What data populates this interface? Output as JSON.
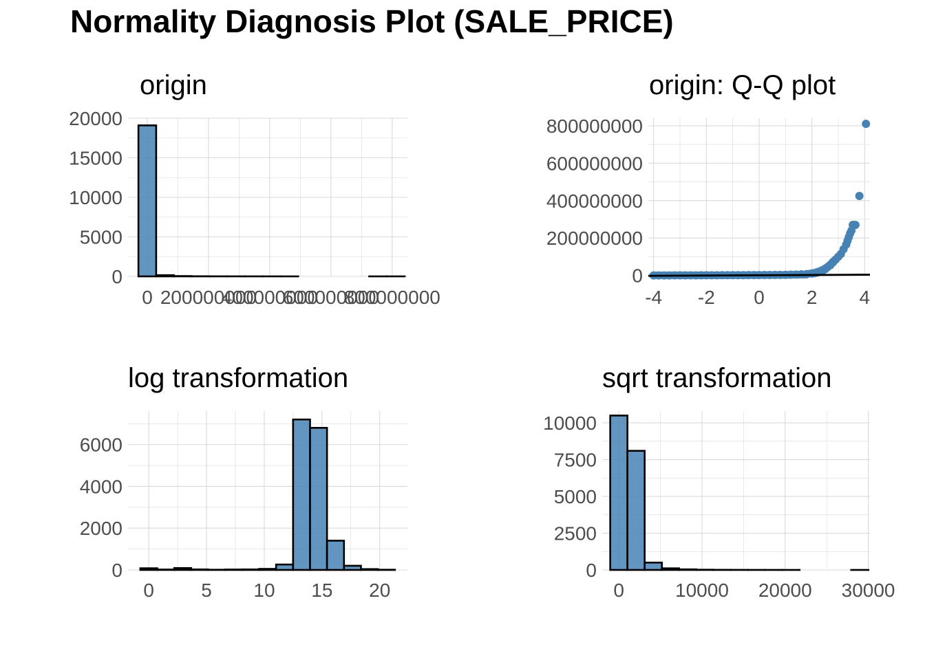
{
  "page": {
    "title": "Normality Diagnosis Plot (SALE_PRICE)",
    "colors": {
      "fill": "#4682B4",
      "outline": "#000000",
      "grid": "#d9d9d9",
      "tick_text": "#4d4d4d",
      "title_text": "#000000"
    }
  },
  "chart_data": [
    {
      "id": "origin",
      "type": "bar",
      "title": "origin",
      "xlabel": "",
      "ylabel": "",
      "xlim": [
        -63000000,
        850000000
      ],
      "ylim": [
        0,
        20000
      ],
      "x_ticks": [
        0,
        200000000,
        400000000,
        600000000,
        800000000
      ],
      "x_tick_labels": [
        "0",
        "200000000",
        "400000000",
        "600000000",
        "800000000"
      ],
      "y_ticks": [
        0,
        5000,
        10000,
        15000,
        20000
      ],
      "y_tick_labels": [
        "0",
        "5000",
        "10000",
        "15000",
        "20000"
      ],
      "bin_width": 58000000,
      "bins": [
        {
          "x": 0,
          "count": 19100
        },
        {
          "x": 58000000,
          "count": 150
        },
        {
          "x": 116000000,
          "count": 40
        },
        {
          "x": 174000000,
          "count": 15
        },
        {
          "x": 232000000,
          "count": 8
        },
        {
          "x": 290000000,
          "count": 5
        },
        {
          "x": 348000000,
          "count": 3
        },
        {
          "x": 406000000,
          "count": 2
        },
        {
          "x": 464000000,
          "count": 1
        },
        {
          "x": 522000000,
          "count": 0
        },
        {
          "x": 580000000,
          "count": 0
        },
        {
          "x": 638000000,
          "count": 0
        },
        {
          "x": 696000000,
          "count": 0
        },
        {
          "x": 754000000,
          "count": 1
        },
        {
          "x": 812000000,
          "count": 1
        }
      ]
    },
    {
      "id": "qq",
      "type": "scatter",
      "title": "origin: Q-Q plot",
      "xlabel": "",
      "ylabel": "",
      "xlim": [
        -4.2,
        4.2
      ],
      "ylim": [
        -5000000,
        840000000
      ],
      "x_ticks": [
        -4,
        -2,
        0,
        2,
        4
      ],
      "x_tick_labels": [
        "-4",
        "-2",
        "0",
        "2",
        "4"
      ],
      "y_ticks": [
        0,
        200000000,
        400000000,
        600000000,
        800000000
      ],
      "y_tick_labels": [
        "0",
        "200000000",
        "400000000",
        "600000000",
        "800000000"
      ],
      "points": [
        {
          "x": -4.0,
          "y": 0
        },
        {
          "x": -3.8,
          "y": 0
        },
        {
          "x": -3.6,
          "y": 0
        },
        {
          "x": -3.4,
          "y": 200000
        },
        {
          "x": -3.2,
          "y": 300000
        },
        {
          "x": -3.0,
          "y": 400000
        },
        {
          "x": -2.8,
          "y": 500000
        },
        {
          "x": -2.6,
          "y": 600000
        },
        {
          "x": -2.4,
          "y": 700000
        },
        {
          "x": -2.2,
          "y": 800000
        },
        {
          "x": -2.0,
          "y": 900000
        },
        {
          "x": -1.8,
          "y": 1000000
        },
        {
          "x": -1.6,
          "y": 1100000
        },
        {
          "x": -1.4,
          "y": 1200000
        },
        {
          "x": -1.2,
          "y": 1300000
        },
        {
          "x": -1.0,
          "y": 1400000
        },
        {
          "x": -0.8,
          "y": 1500000
        },
        {
          "x": -0.6,
          "y": 1600000
        },
        {
          "x": -0.4,
          "y": 1700000
        },
        {
          "x": -0.2,
          "y": 1800000
        },
        {
          "x": 0.0,
          "y": 2000000
        },
        {
          "x": 0.2,
          "y": 2200000
        },
        {
          "x": 0.4,
          "y": 2400000
        },
        {
          "x": 0.6,
          "y": 2700000
        },
        {
          "x": 0.8,
          "y": 3000000
        },
        {
          "x": 1.0,
          "y": 3400000
        },
        {
          "x": 1.2,
          "y": 4000000
        },
        {
          "x": 1.4,
          "y": 4800000
        },
        {
          "x": 1.6,
          "y": 6000000
        },
        {
          "x": 1.8,
          "y": 7500000
        },
        {
          "x": 2.0,
          "y": 10000000
        },
        {
          "x": 2.1,
          "y": 12000000
        },
        {
          "x": 2.2,
          "y": 15000000
        },
        {
          "x": 2.3,
          "y": 19000000
        },
        {
          "x": 2.4,
          "y": 25000000
        },
        {
          "x": 2.5,
          "y": 33000000
        },
        {
          "x": 2.6,
          "y": 45000000
        },
        {
          "x": 2.7,
          "y": 55000000
        },
        {
          "x": 2.8,
          "y": 70000000
        },
        {
          "x": 2.9,
          "y": 85000000
        },
        {
          "x": 3.0,
          "y": 100000000
        },
        {
          "x": 3.1,
          "y": 115000000
        },
        {
          "x": 3.2,
          "y": 140000000
        },
        {
          "x": 3.3,
          "y": 165000000
        },
        {
          "x": 3.35,
          "y": 185000000
        },
        {
          "x": 3.4,
          "y": 205000000
        },
        {
          "x": 3.45,
          "y": 225000000
        },
        {
          "x": 3.5,
          "y": 240000000
        },
        {
          "x": 3.55,
          "y": 270000000
        },
        {
          "x": 3.6,
          "y": 270000000
        },
        {
          "x": 3.65,
          "y": 270000000
        },
        {
          "x": 3.8,
          "y": 425000000
        },
        {
          "x": 4.05,
          "y": 810000000
        }
      ],
      "reference_line": [
        {
          "x": -4.2,
          "y": -2000000
        },
        {
          "x": 4.2,
          "y": 4000000
        }
      ]
    },
    {
      "id": "log",
      "type": "bar",
      "title": "log transformation",
      "xlabel": "",
      "ylabel": "",
      "xlim": [
        -1.8,
        22.4
      ],
      "ylim": [
        0,
        7600
      ],
      "x_ticks": [
        0,
        5,
        10,
        15,
        20
      ],
      "x_tick_labels": [
        "0",
        "5",
        "10",
        "15",
        "20"
      ],
      "y_ticks": [
        0,
        2000,
        4000,
        6000
      ],
      "y_tick_labels": [
        "0",
        "2000",
        "4000",
        "6000"
      ],
      "bin_width": 1.47,
      "bins": [
        {
          "x": 0.0,
          "count": 80
        },
        {
          "x": 1.47,
          "count": 20
        },
        {
          "x": 2.94,
          "count": 90
        },
        {
          "x": 4.41,
          "count": 25
        },
        {
          "x": 5.88,
          "count": 10
        },
        {
          "x": 7.35,
          "count": 20
        },
        {
          "x": 8.82,
          "count": 25
        },
        {
          "x": 10.29,
          "count": 50
        },
        {
          "x": 11.76,
          "count": 260
        },
        {
          "x": 13.23,
          "count": 7200
        },
        {
          "x": 14.7,
          "count": 6800
        },
        {
          "x": 16.17,
          "count": 1400
        },
        {
          "x": 17.64,
          "count": 200
        },
        {
          "x": 19.11,
          "count": 40
        },
        {
          "x": 20.58,
          "count": 10
        }
      ]
    },
    {
      "id": "sqrt",
      "type": "bar",
      "title": "sqrt transformation",
      "xlabel": "",
      "ylabel": "",
      "xlim": [
        -2000,
        30200
      ],
      "ylim": [
        0,
        10800
      ],
      "x_ticks": [
        0,
        10000,
        20000,
        30000
      ],
      "x_tick_labels": [
        "0",
        "10000",
        "20000",
        "30000"
      ],
      "y_ticks": [
        0,
        2500,
        5000,
        7500,
        10000
      ],
      "y_tick_labels": [
        "0",
        "2500",
        "5000",
        "7500",
        "10000"
      ],
      "bin_width": 2070,
      "bins": [
        {
          "x": 0,
          "count": 10500
        },
        {
          "x": 2070,
          "count": 8100
        },
        {
          "x": 4140,
          "count": 500
        },
        {
          "x": 6210,
          "count": 110
        },
        {
          "x": 8280,
          "count": 40
        },
        {
          "x": 10350,
          "count": 15
        },
        {
          "x": 12420,
          "count": 8
        },
        {
          "x": 14490,
          "count": 5
        },
        {
          "x": 16560,
          "count": 3
        },
        {
          "x": 18630,
          "count": 2
        },
        {
          "x": 20700,
          "count": 1
        },
        {
          "x": 22770,
          "count": 0
        },
        {
          "x": 24840,
          "count": 0
        },
        {
          "x": 26910,
          "count": 0
        },
        {
          "x": 28980,
          "count": 1
        }
      ]
    }
  ]
}
